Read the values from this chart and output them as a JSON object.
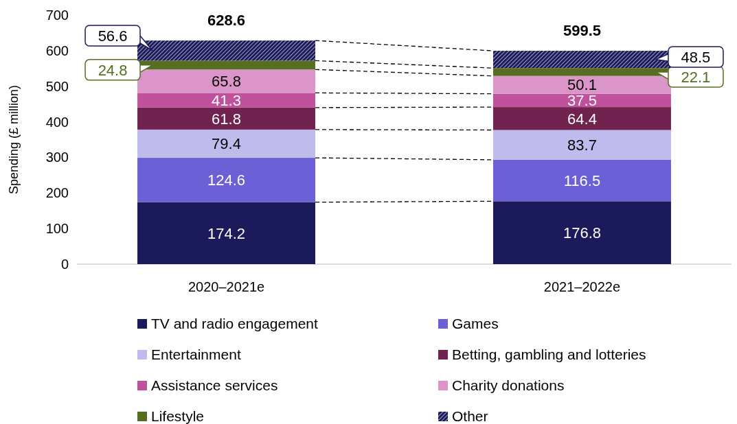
{
  "chart_data": {
    "type": "bar",
    "stacked": true,
    "ylabel": "Spending (£ million)",
    "categories": [
      "2020–2021e",
      "2021–2022e"
    ],
    "ylim": [
      0,
      700
    ],
    "yticks": [
      0,
      100,
      200,
      300,
      400,
      500,
      600,
      700
    ],
    "data_labels": true,
    "totals": [
      "628.6",
      "599.5"
    ],
    "legend": "bottom",
    "series": [
      {
        "name": "TV and radio engagement",
        "color": "#1b1a5a",
        "values": [
          174.2,
          176.8
        ]
      },
      {
        "name": "Games",
        "color": "#6b60d6",
        "values": [
          124.6,
          116.5
        ]
      },
      {
        "name": "Entertainment",
        "color": "#bfbced",
        "values": [
          79.4,
          83.7
        ]
      },
      {
        "name": "Betting, gambling and lotteries",
        "color": "#70234f",
        "values": [
          61.8,
          64.4
        ]
      },
      {
        "name": "Assistance services",
        "color": "#c0519c",
        "values": [
          41.3,
          37.5
        ]
      },
      {
        "name": "Charity donations",
        "color": "#db95c8",
        "values": [
          65.8,
          50.1
        ]
      },
      {
        "name": "Lifestyle",
        "color": "#556e20",
        "values": [
          24.8,
          22.1
        ]
      },
      {
        "name": "Other",
        "color": "#1b1a5a",
        "values": [
          56.6,
          48.5
        ]
      }
    ]
  }
}
